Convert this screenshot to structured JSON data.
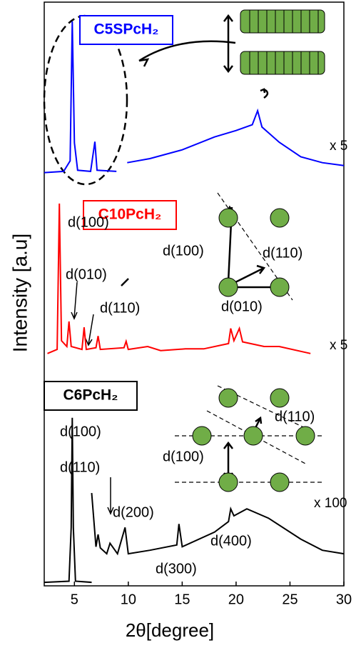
{
  "chart_data": {
    "type": "line",
    "xlabel": "2θ[degree]",
    "ylabel": "Intensity [a.u]",
    "xlim": [
      2.2,
      30
    ],
    "ylim": [
      0,
      100
    ],
    "xticks": [
      5,
      10,
      15,
      20,
      25,
      30
    ],
    "series": [
      {
        "name": "C5SPcH₂",
        "color": "#0000ff",
        "scale_label": "x 5",
        "x": [
          2.2,
          4.0,
          4.6,
          4.8,
          5.0,
          5.3,
          6.5,
          6.9,
          7.1,
          8.9,
          9.4,
          9.9,
          12,
          15,
          18,
          20,
          21.5,
          22.0,
          22.4,
          24,
          26,
          28,
          30
        ],
        "values": [
          70.8,
          71.0,
          72.8,
          96.7,
          75.9,
          71.2,
          71.0,
          76.1,
          71.2,
          71.0,
          null,
          72.5,
          73.2,
          74.7,
          76.9,
          78.0,
          79.0,
          81.4,
          78.6,
          76.0,
          73.5,
          72.5,
          72.0
        ]
      },
      {
        "name": "C10PcH₂",
        "color": "#ff0000",
        "scale_label": "x 5",
        "x": [
          2.5,
          3.4,
          3.6,
          3.8,
          4.3,
          4.5,
          4.7,
          5.7,
          5.9,
          6.1,
          7.0,
          7.2,
          7.4,
          9.6,
          9.8,
          10.0,
          11.8,
          13,
          15.3,
          17,
          19.3,
          19.5,
          19.8,
          20.3,
          20.6,
          22.6,
          24,
          26.9
        ],
        "values": [
          39.8,
          40.5,
          65.5,
          42,
          41,
          45.3,
          41,
          40.5,
          44.3,
          40.5,
          40.8,
          42.8,
          40.5,
          40.8,
          41.9,
          40.5,
          41.0,
          40.3,
          40.6,
          40.6,
          41.5,
          44.1,
          42,
          44.1,
          41.8,
          41.0,
          41.0,
          39.8
        ]
      },
      {
        "name": "C6PcH₂",
        "color": "#000000",
        "scale_label": "x 100",
        "x": [
          2.2,
          4.5,
          4.7,
          4.8,
          4.9,
          5.1,
          6.6,
          6.8,
          6.6,
          7.0,
          7.2,
          7.4,
          8.0,
          8.3,
          9.0,
          9.7,
          10,
          12,
          14.5,
          14.7,
          15,
          18,
          19.3,
          19.5,
          19.8,
          21,
          23,
          26,
          28,
          30
        ],
        "values": [
          0.6,
          0.8,
          10,
          28.8,
          10,
          0.8,
          0.6,
          null,
          15.9,
          6.7,
          8.8,
          6.5,
          5.5,
          7.3,
          5.5,
          10.0,
          5.5,
          6.1,
          7.0,
          10.6,
          6.7,
          9.2,
          11.0,
          13.2,
          12.0,
          13.2,
          11.6,
          8.0,
          6.1,
          5.5
        ]
      }
    ],
    "annotations": [
      "d(100)",
      "d(010)",
      "d(110)",
      "d(100)",
      "d(110)",
      "d(010)",
      "d(100)",
      "d(110)",
      "d(200)",
      "d(300)",
      "d(400)",
      "d(110)",
      "d(100)"
    ]
  }
}
